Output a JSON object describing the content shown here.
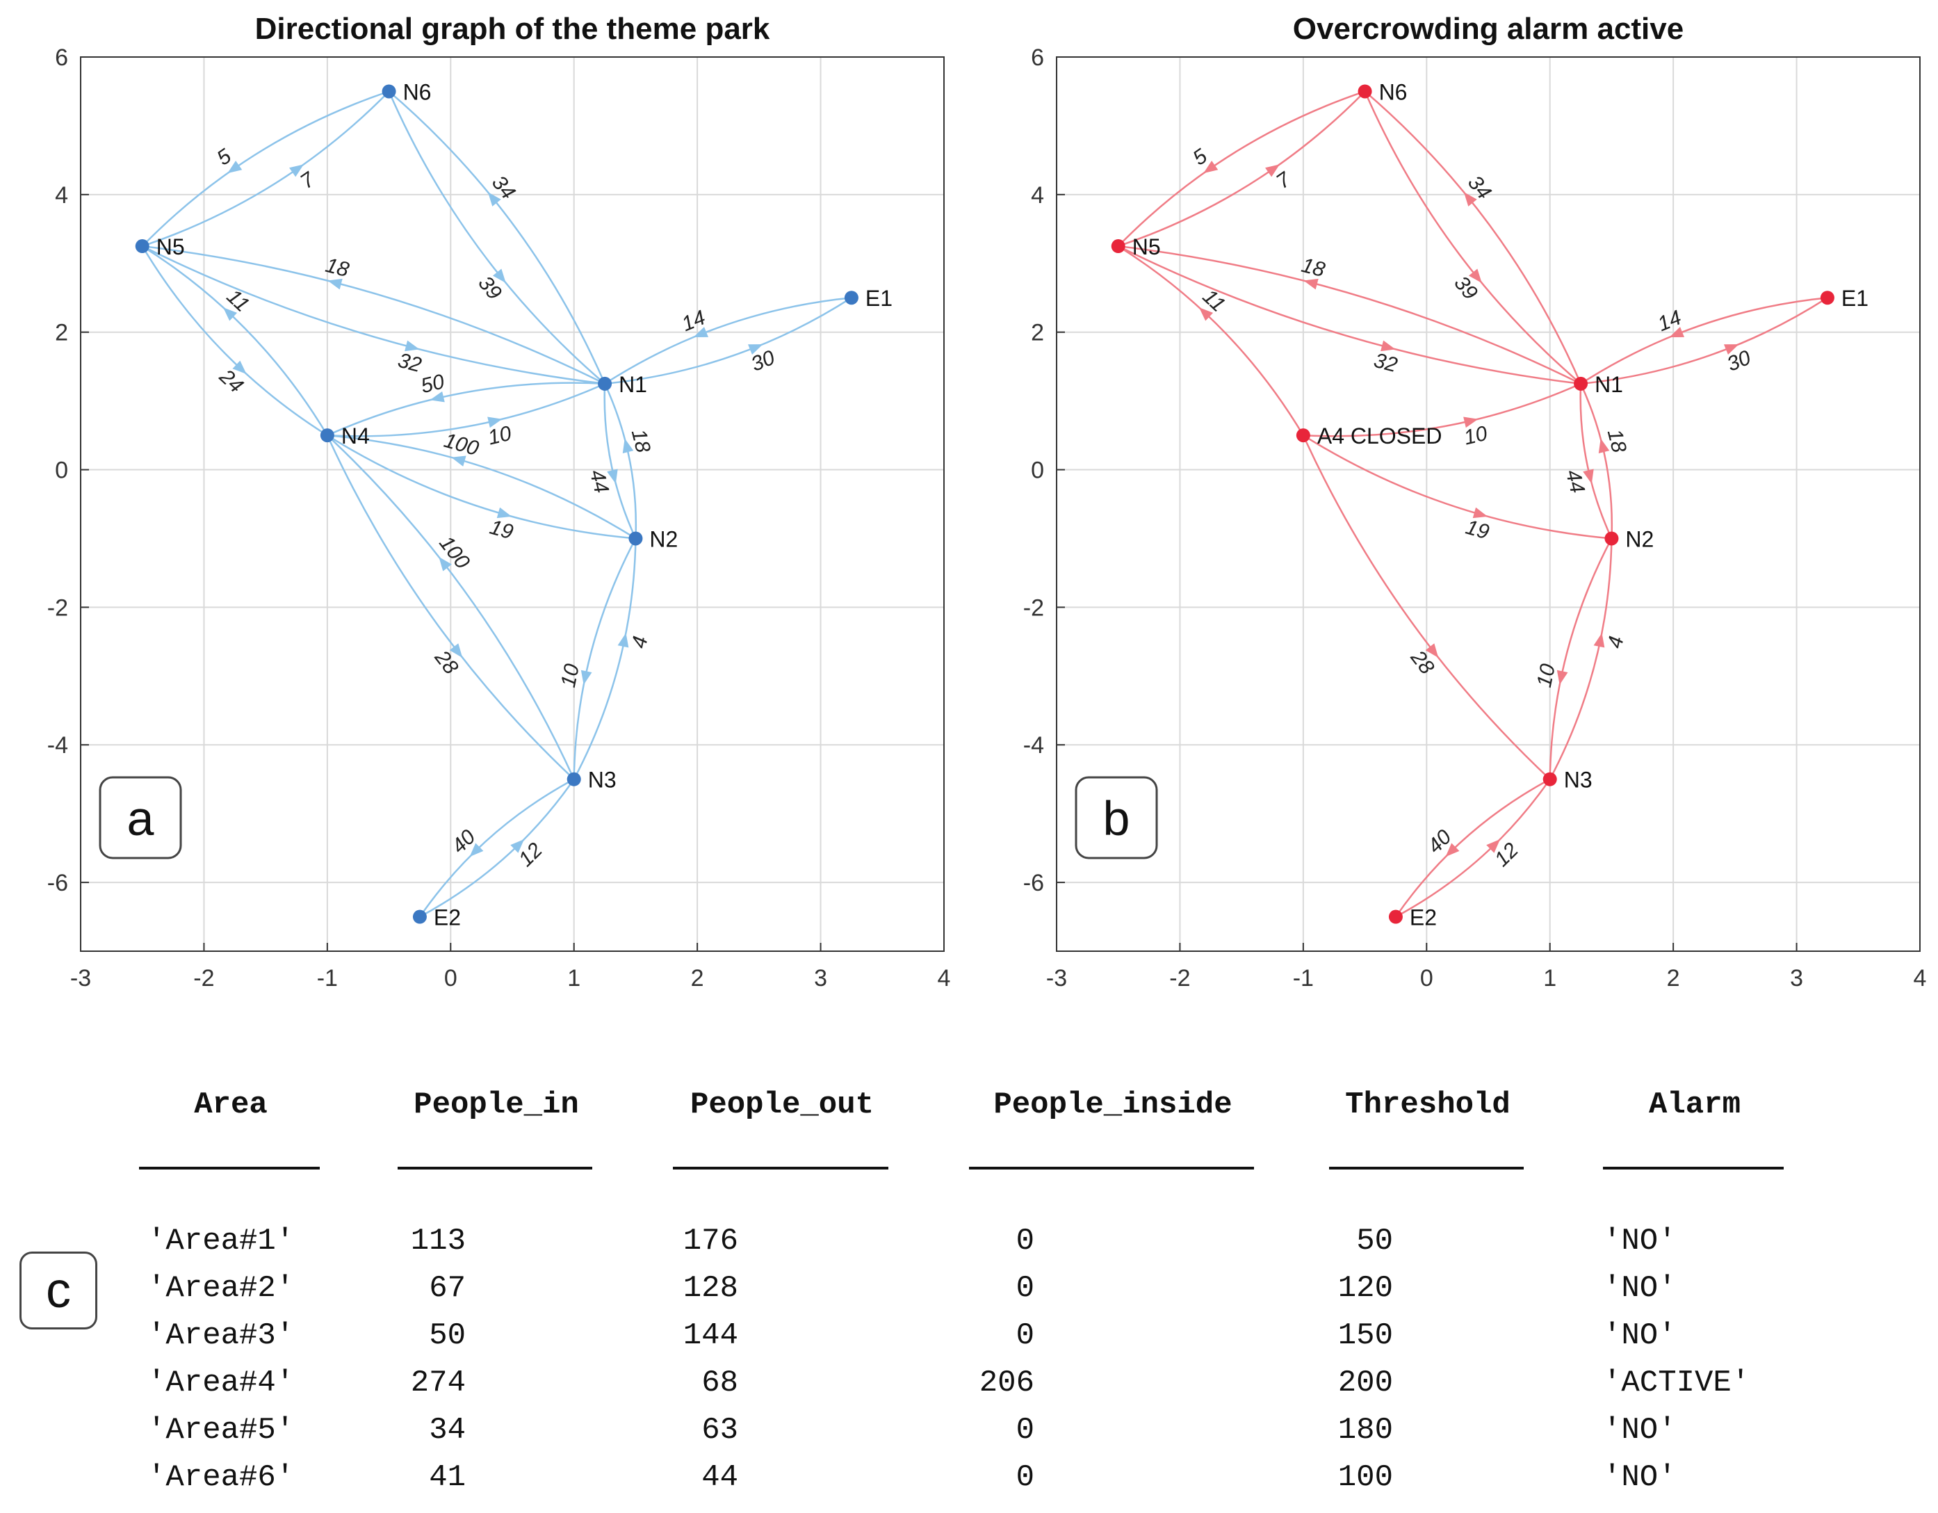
{
  "chart_data": [
    {
      "type": "directed-graph",
      "panel_label": "a",
      "title": "Directional graph of the theme park",
      "color": "#3b78c2",
      "edge_color": "#8cc3ea",
      "xlim": [
        -3,
        4
      ],
      "ylim": [
        -7,
        6
      ],
      "xticks": [
        -3,
        -2,
        -1,
        0,
        1,
        2,
        3,
        4
      ],
      "yticks": [
        -6,
        -4,
        -2,
        0,
        2,
        4,
        6
      ],
      "grid": true,
      "nodes": [
        {
          "id": "N6",
          "label": "N6",
          "x": -0.5,
          "y": 5.5
        },
        {
          "id": "N5",
          "label": "N5",
          "x": -2.5,
          "y": 3.25
        },
        {
          "id": "N1",
          "label": "N1",
          "x": 1.25,
          "y": 1.25
        },
        {
          "id": "E1",
          "label": "E1",
          "x": 3.25,
          "y": 2.5
        },
        {
          "id": "N4",
          "label": "N4",
          "x": -1.0,
          "y": 0.5
        },
        {
          "id": "N2",
          "label": "N2",
          "x": 1.5,
          "y": -1.0
        },
        {
          "id": "N3",
          "label": "N3",
          "x": 1.0,
          "y": -4.5
        },
        {
          "id": "E2",
          "label": "E2",
          "x": -0.25,
          "y": -6.5
        }
      ],
      "edges": [
        {
          "from": "N6",
          "to": "N5",
          "weight": "5"
        },
        {
          "from": "N5",
          "to": "N6",
          "weight": "7"
        },
        {
          "from": "N6",
          "to": "N1",
          "weight": "39"
        },
        {
          "from": "N1",
          "to": "N6",
          "weight": "34"
        },
        {
          "from": "N1",
          "to": "N5",
          "weight": "18"
        },
        {
          "from": "N5",
          "to": "N1",
          "weight": "32"
        },
        {
          "from": "N5",
          "to": "N4",
          "weight": "24"
        },
        {
          "from": "N4",
          "to": "N5",
          "weight": "11"
        },
        {
          "from": "N1",
          "to": "E1",
          "weight": "30"
        },
        {
          "from": "E1",
          "to": "N1",
          "weight": "14"
        },
        {
          "from": "N1",
          "to": "N4",
          "weight": "50"
        },
        {
          "from": "N4",
          "to": "N1",
          "weight": "10"
        },
        {
          "from": "N1",
          "to": "N2",
          "weight": "44"
        },
        {
          "from": "N2",
          "to": "N1",
          "weight": "18"
        },
        {
          "from": "N2",
          "to": "N4",
          "weight": "100"
        },
        {
          "from": "N4",
          "to": "N2",
          "weight": "19"
        },
        {
          "from": "N4",
          "to": "N3",
          "weight": "28"
        },
        {
          "from": "N3",
          "to": "N4",
          "weight": "100"
        },
        {
          "from": "N2",
          "to": "N3",
          "weight": "10"
        },
        {
          "from": "N3",
          "to": "N2",
          "weight": "4"
        },
        {
          "from": "N3",
          "to": "E2",
          "weight": "40"
        },
        {
          "from": "E2",
          "to": "N3",
          "weight": "12"
        }
      ]
    },
    {
      "type": "directed-graph",
      "panel_label": "b",
      "title": "Overcrowding alarm active",
      "color": "#e8253a",
      "edge_color": "#f07c86",
      "xlim": [
        -3,
        4
      ],
      "ylim": [
        -7,
        6
      ],
      "xticks": [
        -3,
        -2,
        -1,
        0,
        1,
        2,
        3,
        4
      ],
      "yticks": [
        -6,
        -4,
        -2,
        0,
        2,
        4,
        6
      ],
      "grid": true,
      "nodes": [
        {
          "id": "N6",
          "label": "N6",
          "x": -0.5,
          "y": 5.5
        },
        {
          "id": "N5",
          "label": "N5",
          "x": -2.5,
          "y": 3.25
        },
        {
          "id": "N1",
          "label": "N1",
          "x": 1.25,
          "y": 1.25
        },
        {
          "id": "E1",
          "label": "E1",
          "x": 3.25,
          "y": 2.5
        },
        {
          "id": "N4",
          "label": "A4 CLOSED",
          "x": -1.0,
          "y": 0.5
        },
        {
          "id": "N2",
          "label": "N2",
          "x": 1.5,
          "y": -1.0
        },
        {
          "id": "N3",
          "label": "N3",
          "x": 1.0,
          "y": -4.5
        },
        {
          "id": "E2",
          "label": "E2",
          "x": -0.25,
          "y": -6.5
        }
      ],
      "edges": [
        {
          "from": "N6",
          "to": "N5",
          "weight": "5"
        },
        {
          "from": "N5",
          "to": "N6",
          "weight": "7"
        },
        {
          "from": "N6",
          "to": "N1",
          "weight": "39"
        },
        {
          "from": "N1",
          "to": "N6",
          "weight": "34"
        },
        {
          "from": "N1",
          "to": "N5",
          "weight": "18"
        },
        {
          "from": "N5",
          "to": "N1",
          "weight": "32"
        },
        {
          "from": "N4",
          "to": "N5",
          "weight": "11"
        },
        {
          "from": "N1",
          "to": "E1",
          "weight": "30"
        },
        {
          "from": "E1",
          "to": "N1",
          "weight": "14"
        },
        {
          "from": "N4",
          "to": "N1",
          "weight": "10"
        },
        {
          "from": "N1",
          "to": "N2",
          "weight": "44"
        },
        {
          "from": "N2",
          "to": "N1",
          "weight": "18"
        },
        {
          "from": "N4",
          "to": "N2",
          "weight": "19"
        },
        {
          "from": "N4",
          "to": "N3",
          "weight": "28"
        },
        {
          "from": "N2",
          "to": "N3",
          "weight": "10"
        },
        {
          "from": "N3",
          "to": "N2",
          "weight": "4"
        },
        {
          "from": "N3",
          "to": "E2",
          "weight": "40"
        },
        {
          "from": "E2",
          "to": "N3",
          "weight": "12"
        }
      ]
    },
    {
      "type": "table",
      "panel_label": "c",
      "columns": [
        "Area",
        "People_in",
        "People_out",
        "People_inside",
        "Threshold",
        "Alarm"
      ],
      "rows": [
        [
          "'Area#1'",
          "113",
          "176",
          "0",
          "50",
          "'NO'"
        ],
        [
          "'Area#2'",
          "67",
          "128",
          "0",
          "120",
          "'NO'"
        ],
        [
          "'Area#3'",
          "50",
          "144",
          "0",
          "150",
          "'NO'"
        ],
        [
          "'Area#4'",
          "274",
          "68",
          "206",
          "200",
          "'ACTIVE'"
        ],
        [
          "'Area#5'",
          "34",
          "63",
          "0",
          "180",
          "'NO'"
        ],
        [
          "'Area#6'",
          "41",
          "44",
          "0",
          "100",
          "'NO'"
        ]
      ]
    }
  ]
}
